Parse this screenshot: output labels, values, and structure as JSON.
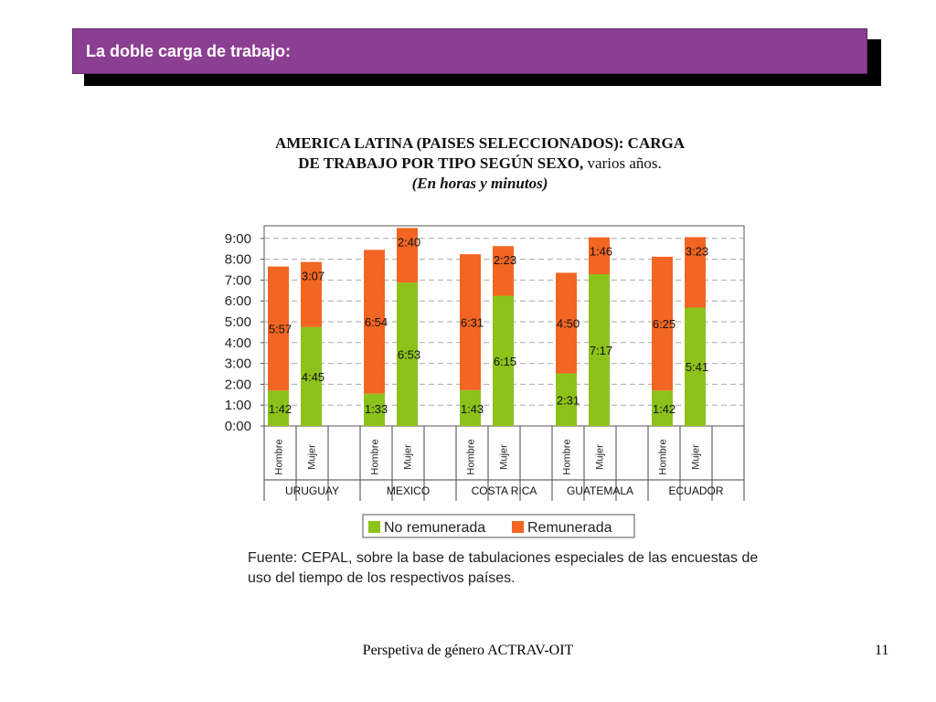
{
  "slide": {
    "title": "La doble carga de trabajo:",
    "footer": "Perspetiva de género ACTRAV-OIT",
    "page_number": "11",
    "title_color": "#8b3f92"
  },
  "chart_title": {
    "line1": "AMERICA LATINA (PAISES SELECCIONADOS): CARGA",
    "line2_bold": "DE TRABAJO POR TIPO SEGÚN SEXO,",
    "line2_normal": " varios años.",
    "line3": "(En horas y minutos)"
  },
  "source": "Fuente: CEPAL, sobre la base de tabulaciones especiales de las encuestas de uso del tiempo de los respectivos países.",
  "chart_data": {
    "type": "bar",
    "stacked": true,
    "y_ticks": [
      "0:00",
      "1:00",
      "2:00",
      "3:00",
      "4:00",
      "5:00",
      "6:00",
      "7:00",
      "8:00",
      "9:00"
    ],
    "ylim": [
      0,
      9.5
    ],
    "y_unit": "hours",
    "grid": true,
    "legend_position": "bottom",
    "countries": [
      "URUGUAY",
      "MEXICO",
      "COSTA RICA",
      "GUATEMALA",
      "ECUADOR"
    ],
    "sex_labels": [
      "Hombre",
      "Mujer"
    ],
    "series": [
      {
        "name": "No remunerada",
        "color": "#8cc21a",
        "values": [
          1.7,
          4.75,
          1.55,
          6.88,
          1.72,
          6.25,
          2.52,
          7.28,
          1.7,
          5.68
        ],
        "labels": [
          "1:42",
          "4:45",
          "1:33",
          "6:53",
          "1:43",
          "6:15",
          "2:31",
          "7:17",
          "1:42",
          "5:41"
        ]
      },
      {
        "name": "Remunerada",
        "color": "#f26522",
        "values": [
          5.95,
          3.12,
          6.9,
          2.67,
          6.52,
          2.38,
          4.83,
          1.77,
          6.42,
          3.38
        ],
        "labels": [
          "5:57",
          "3:07",
          "6:54",
          "2:40",
          "6:31",
          "2:23",
          "4:50",
          "1:46",
          "6:25",
          "3:23"
        ]
      }
    ]
  }
}
